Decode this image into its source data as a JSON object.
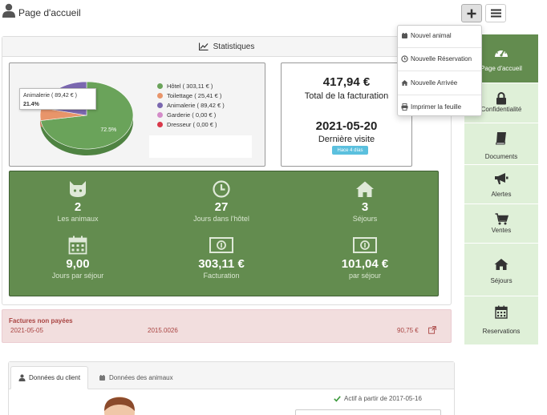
{
  "header": {
    "title": "Page d'accueil"
  },
  "add_menu": {
    "items": [
      {
        "label": "Nouvel animal",
        "icon": "paw-icon"
      },
      {
        "label": "Nouvelle Réservation",
        "icon": "clock-icon"
      },
      {
        "label": "Nouvelle Arrivée",
        "icon": "home-icon"
      },
      {
        "label": "Imprimer la feuille",
        "icon": "print-icon"
      }
    ]
  },
  "stats": {
    "heading": "Statistiques",
    "legend": [
      {
        "label": "Hôtel ( 303,11 € )",
        "color": "#6aa35a"
      },
      {
        "label": "Toilettage ( 25,41 € )",
        "color": "#e8956a"
      },
      {
        "label": "Animalerie ( 89,42 € )",
        "color": "#7b68b0"
      },
      {
        "label": "Garderie ( 0,00 € )",
        "color": "#d48cc9"
      },
      {
        "label": "Dresseur ( 0,00 € )",
        "color": "#d9384a"
      }
    ],
    "tooltip": {
      "text": "Animalerie ( 89,42 € )",
      "pct": "21.4%"
    },
    "big_slice_label": "72.5%",
    "total_amount": "417,94 €",
    "total_label": "Total de la facturation",
    "visit_date": "2021-05-20",
    "visit_label": "Dernière visite",
    "visit_badge": "Hace 4 días",
    "tiles": [
      {
        "value": "2",
        "label": "Les animaux",
        "icon": "cat-icon"
      },
      {
        "value": "27",
        "label": "Jours dans l'hôtel",
        "icon": "clock-icon"
      },
      {
        "value": "3",
        "label": "Séjours",
        "icon": "home-icon"
      },
      {
        "value": "9,00",
        "label": "Jours par séjour",
        "icon": "calendar-icon"
      },
      {
        "value": "303,11 €",
        "label": "Facturation",
        "icon": "money-icon"
      },
      {
        "value": "101,04 €",
        "label": "par séjour",
        "icon": "money-icon"
      }
    ]
  },
  "chart_data": {
    "type": "pie",
    "title": "",
    "slices": [
      {
        "name": "Hôtel",
        "value": 303.11,
        "label": "72.5%"
      },
      {
        "name": "Toilettage",
        "value": 25.41
      },
      {
        "name": "Animalerie",
        "value": 89.42,
        "label": "21.4%"
      },
      {
        "name": "Garderie",
        "value": 0.0
      },
      {
        "name": "Dresseur",
        "value": 0.0
      }
    ],
    "legend": "right"
  },
  "unpaid": {
    "title": "Factures non payées",
    "rows": [
      {
        "date": "2021-05-05",
        "number": "2015.0026",
        "amount": "90,75 €"
      }
    ]
  },
  "client": {
    "tabs": [
      {
        "label": "Données du client",
        "icon": "user-icon"
      },
      {
        "label": "Données des animaux",
        "icon": "paw-icon"
      }
    ],
    "active_since": "Actif à partir de 2017-05-16"
  },
  "sidebar": {
    "items": [
      {
        "label": "Page d'accueil",
        "icon": "dashboard-icon"
      },
      {
        "label": "Confidentialité",
        "icon": "lock-icon"
      },
      {
        "label": "Documents",
        "icon": "book-icon"
      },
      {
        "label": "Alertes",
        "icon": "bullhorn-icon"
      },
      {
        "label": "Ventes",
        "icon": "cart-icon"
      },
      {
        "label": "Séjours",
        "icon": "home-icon"
      },
      {
        "label": "Reservations",
        "icon": "calendar-icon"
      }
    ]
  },
  "colors": {
    "green": "#638c4f",
    "sidebar_light": "#dff0d8",
    "danger_bg": "#f2dede",
    "danger_text": "#a94442",
    "info": "#5bc0de"
  }
}
